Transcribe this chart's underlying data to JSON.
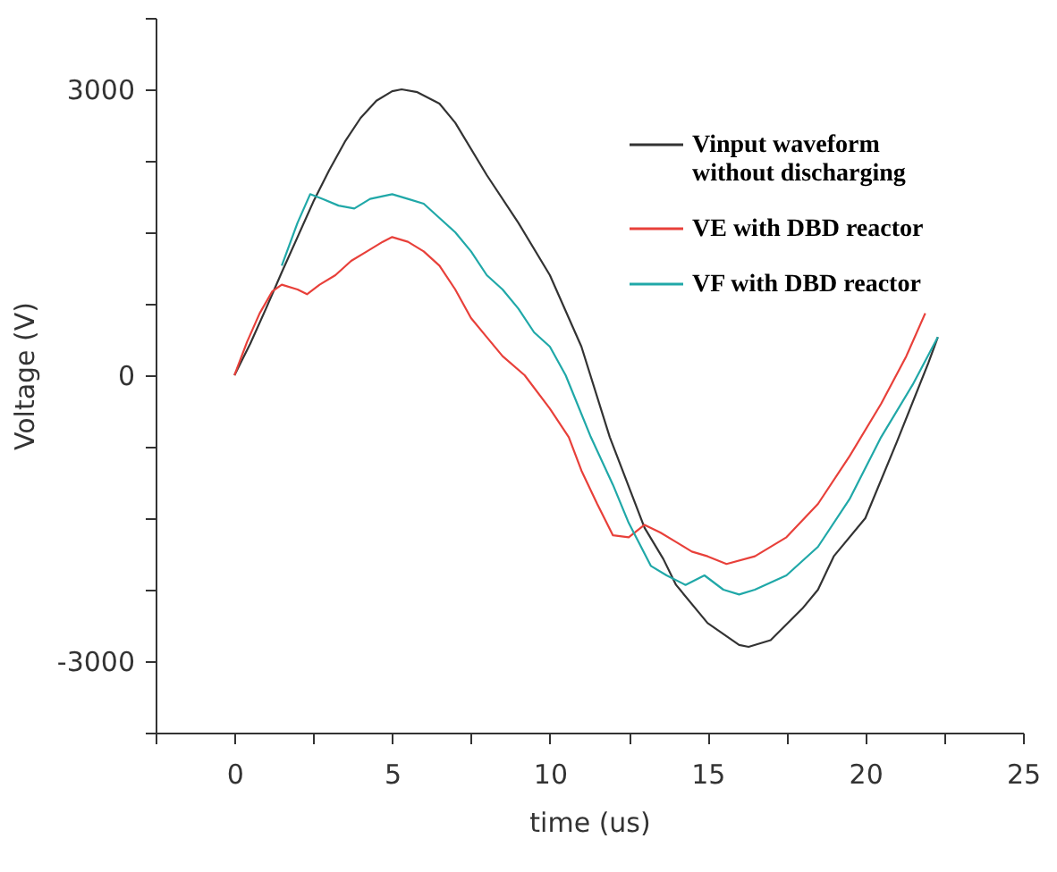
{
  "chart_data": {
    "type": "line",
    "xlabel": "time (us)",
    "ylabel": "Voltage (V)",
    "xlim": [
      -2.5,
      25
    ],
    "ylim": [
      -3750,
      3750
    ],
    "xticks": [
      {
        "value": -2.5,
        "label": null
      },
      0,
      {
        "value": 2.5,
        "label": null
      },
      5,
      {
        "value": 7.5,
        "label": null
      },
      10,
      {
        "value": 12.5,
        "label": null
      },
      15,
      {
        "value": 17.5,
        "label": null
      },
      20,
      {
        "value": 22.5,
        "label": null
      },
      25
    ],
    "yticks": [
      {
        "value": -3750,
        "label": null
      },
      -3000,
      {
        "value": -2250,
        "label": null
      },
      {
        "value": -1500,
        "label": null
      },
      {
        "value": -750,
        "label": null
      },
      0,
      {
        "value": 750,
        "label": null
      },
      {
        "value": 1500,
        "label": null
      },
      {
        "value": 2250,
        "label": null
      },
      3000,
      {
        "value": 3750,
        "label": null
      }
    ],
    "grid": false,
    "legend": "top right",
    "marker": "none",
    "line_style": "solid",
    "series": [
      {
        "name": "Vinput waveform\nwithout discharging",
        "color": "#333333",
        "x": [
          0,
          0.5,
          1,
          1.5,
          2,
          2.5,
          3,
          3.5,
          4,
          4.5,
          5,
          5.3,
          5.8,
          6.5,
          7,
          8,
          9,
          10,
          11,
          11.9,
          13,
          13.6,
          14,
          15,
          16,
          16.3,
          17,
          18,
          18.5,
          19,
          20,
          21,
          22,
          22.3
        ],
        "values": [
          0,
          330,
          700,
          1080,
          1450,
          1820,
          2150,
          2450,
          2700,
          2880,
          2980,
          3000,
          2970,
          2850,
          2650,
          2100,
          1600,
          1050,
          300,
          -650,
          -1600,
          -1930,
          -2200,
          -2600,
          -2830,
          -2850,
          -2780,
          -2450,
          -2250,
          -1900,
          -1500,
          -700,
          130,
          400
        ]
      },
      {
        "name": "VE with DBD reactor",
        "color": "#e8403a",
        "x": [
          0,
          0.4,
          0.8,
          1.2,
          1.5,
          2,
          2.3,
          2.7,
          3.2,
          3.7,
          4.2,
          4.7,
          5,
          5.5,
          6,
          6.5,
          7,
          7.5,
          8,
          8.5,
          9.2,
          10,
          10.6,
          11,
          11.5,
          12,
          12.5,
          13,
          13.5,
          14,
          14.5,
          15,
          15.6,
          16.5,
          17.5,
          18.5,
          19.5,
          20.5,
          21.3,
          21.9
        ],
        "values": [
          0,
          350,
          650,
          880,
          950,
          900,
          850,
          950,
          1050,
          1200,
          1300,
          1400,
          1450,
          1400,
          1300,
          1150,
          900,
          600,
          400,
          200,
          0,
          -350,
          -650,
          -1000,
          -1350,
          -1680,
          -1700,
          -1570,
          -1650,
          -1750,
          -1850,
          -1900,
          -1980,
          -1900,
          -1700,
          -1350,
          -850,
          -300,
          200,
          650
        ]
      },
      {
        "name": "VF with DBD reactor",
        "color": "#20a8a8",
        "x": [
          1.5,
          2,
          2.4,
          2.8,
          3.3,
          3.8,
          4.3,
          5,
          5.5,
          6,
          6.5,
          7,
          7.5,
          8,
          8.5,
          9,
          9.5,
          10,
          10.5,
          11.3,
          12,
          12.5,
          13.2,
          13.7,
          14.3,
          14.9,
          15.5,
          16,
          16.5,
          17.5,
          18.5,
          19.5,
          20.5,
          21.5,
          22.3
        ],
        "values": [
          1150,
          1600,
          1900,
          1850,
          1780,
          1750,
          1850,
          1900,
          1850,
          1800,
          1650,
          1500,
          1300,
          1050,
          900,
          700,
          450,
          300,
          0,
          -650,
          -1150,
          -1550,
          -2000,
          -2100,
          -2200,
          -2100,
          -2250,
          -2300,
          -2250,
          -2100,
          -1800,
          -1300,
          -650,
          -100,
          400
        ]
      }
    ]
  }
}
